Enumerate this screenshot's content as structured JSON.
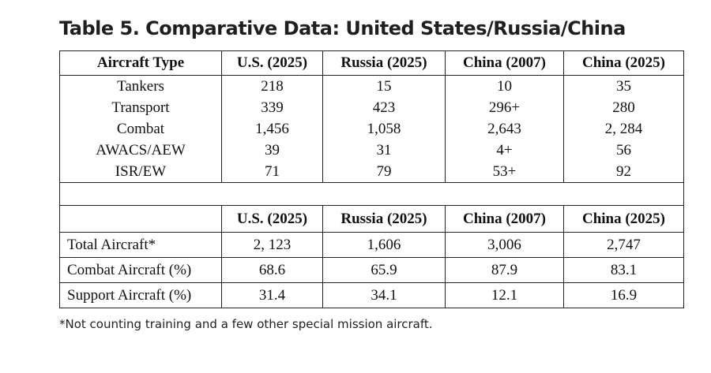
{
  "title": "Table 5. Comparative Data: United States/Russia/China",
  "top_table": {
    "headers": [
      "Aircraft Type",
      "U.S. (2025)",
      "Russia (2025)",
      "China (2007)",
      "China (2025)"
    ],
    "rows": [
      [
        "Tankers",
        "218",
        "15",
        "10",
        "35"
      ],
      [
        "Transport",
        "339",
        "423",
        "296+",
        "280"
      ],
      [
        "Combat",
        "1,456",
        "1,058",
        "2,643",
        "2, 284"
      ],
      [
        "AWACS/AEW",
        "39",
        "31",
        "4+",
        "56"
      ],
      [
        "ISR/EW",
        "71",
        "79",
        "53+",
        "92"
      ]
    ]
  },
  "bottom_table": {
    "headers": [
      "",
      "U.S. (2025)",
      "Russia (2025)",
      "China (2007)",
      "China (2025)"
    ],
    "rows": [
      [
        "Total Aircraft*",
        "2, 123",
        "1,606",
        "3,006",
        "2,747"
      ],
      [
        "Combat Aircraft (%)",
        "68.6",
        "65.9",
        "87.9",
        "83.1"
      ],
      [
        "Support Aircraft (%)",
        "31.4",
        "34.1",
        "12.1",
        "16.9"
      ]
    ]
  },
  "footnote": "*Not counting training and a few other special mission aircraft."
}
